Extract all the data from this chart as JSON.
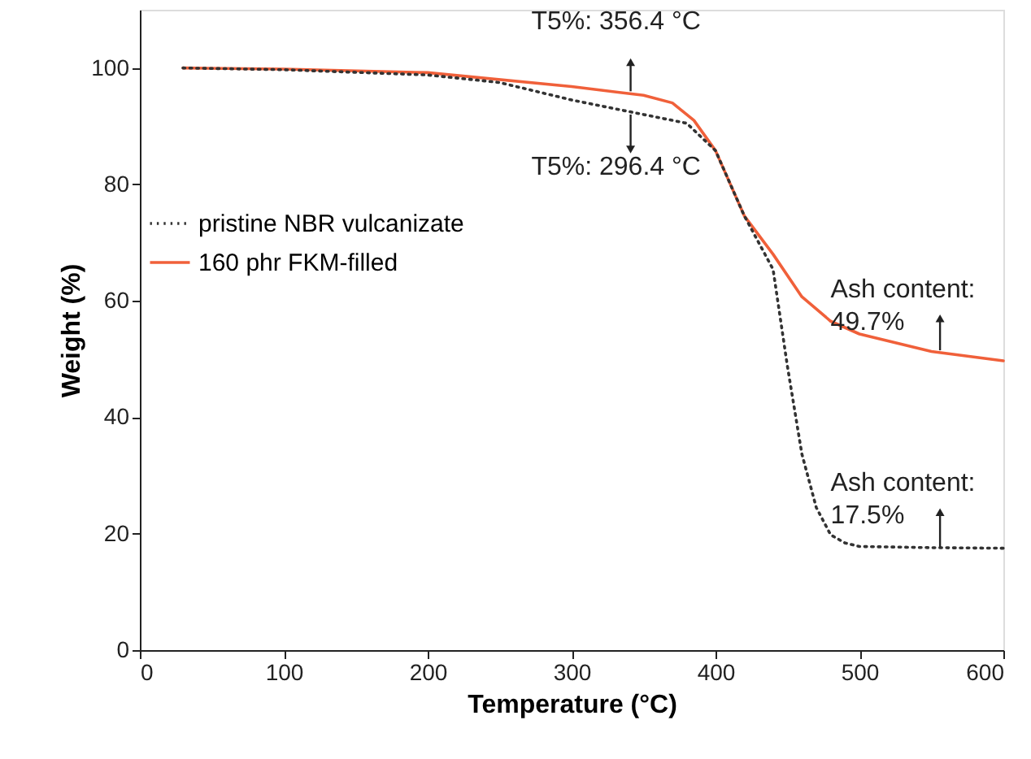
{
  "chart_data": {
    "type": "line",
    "xlabel": "Temperature (°C)",
    "ylabel": "Weight (%)",
    "xlim": [
      0,
      600
    ],
    "xticks": [
      0,
      100,
      200,
      300,
      400,
      500,
      600
    ],
    "ylim": [
      0,
      110
    ],
    "yticks": [
      0,
      20,
      40,
      60,
      80,
      100
    ],
    "grid": false,
    "legend": "left",
    "marker": "none",
    "series": [
      {
        "name": "pristine NBR vulcanizate",
        "color": "#333333",
        "line_style": "dotted",
        "x": [
          30,
          100,
          200,
          250,
          300,
          350,
          380,
          400,
          420,
          440,
          450,
          460,
          470,
          480,
          490,
          500,
          550,
          600
        ],
        "values": [
          100,
          99.7,
          98.8,
          97.5,
          94.5,
          92,
          90.5,
          85.8,
          74.6,
          65.4,
          48.7,
          33.7,
          24.5,
          19.8,
          18.4,
          17.8,
          17.6,
          17.5
        ]
      },
      {
        "name": "160 phr FKM-filled",
        "color": "#f0603a",
        "line_style": "solid",
        "x": [
          30,
          100,
          200,
          300,
          350,
          370,
          385,
          400,
          420,
          440,
          460,
          480,
          500,
          550,
          600
        ],
        "values": [
          100,
          99.8,
          99.2,
          96.8,
          95.3,
          94,
          91,
          85.8,
          74.6,
          68,
          60.7,
          56.5,
          54.3,
          51.3,
          49.7
        ]
      }
    ],
    "annotations": [
      "T5%: 356.4 °C",
      "T5%: 296.4 °C",
      "Ash content:\n49.7%",
      "Ash content:\n17.5%"
    ]
  }
}
